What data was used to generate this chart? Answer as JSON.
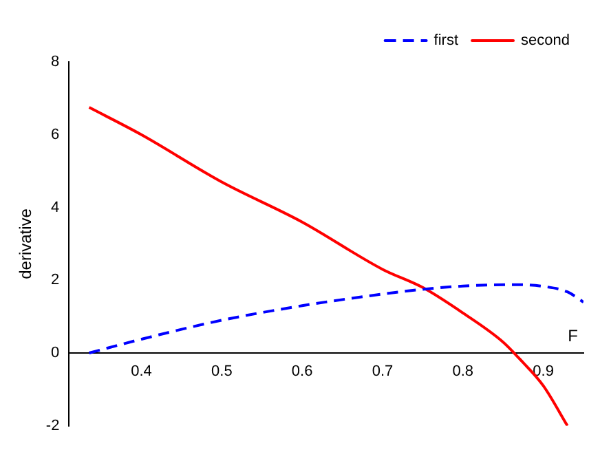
{
  "chart_data": {
    "type": "line",
    "xlabel": "F",
    "ylabel": "derivative",
    "xlim": [
      0.31,
      0.95
    ],
    "xticks": [
      0.4,
      0.5,
      0.6,
      0.7,
      0.8,
      0.9
    ],
    "ylim": [
      -2,
      8
    ],
    "yticks": [
      -2,
      0,
      2,
      4,
      6,
      8
    ],
    "legend": "top right",
    "grid": false,
    "series": [
      {
        "name": "first",
        "color": "#0000ff",
        "line_style": "dashed",
        "x": [
          0.335,
          0.4,
          0.5,
          0.6,
          0.7,
          0.75,
          0.8,
          0.86,
          0.9,
          0.93,
          0.95
        ],
        "values": [
          0,
          0.38,
          0.9,
          1.3,
          1.62,
          1.75,
          1.84,
          1.88,
          1.83,
          1.68,
          1.4
        ]
      },
      {
        "name": "second",
        "color": "#ff0000",
        "line_style": "solid",
        "x": [
          0.335,
          0.4,
          0.5,
          0.6,
          0.7,
          0.75,
          0.8,
          0.85,
          0.87,
          0.9,
          0.93
        ],
        "values": [
          6.75,
          6.0,
          4.7,
          3.6,
          2.3,
          1.8,
          1.1,
          0.3,
          -0.15,
          -0.9,
          -2
        ]
      }
    ]
  }
}
